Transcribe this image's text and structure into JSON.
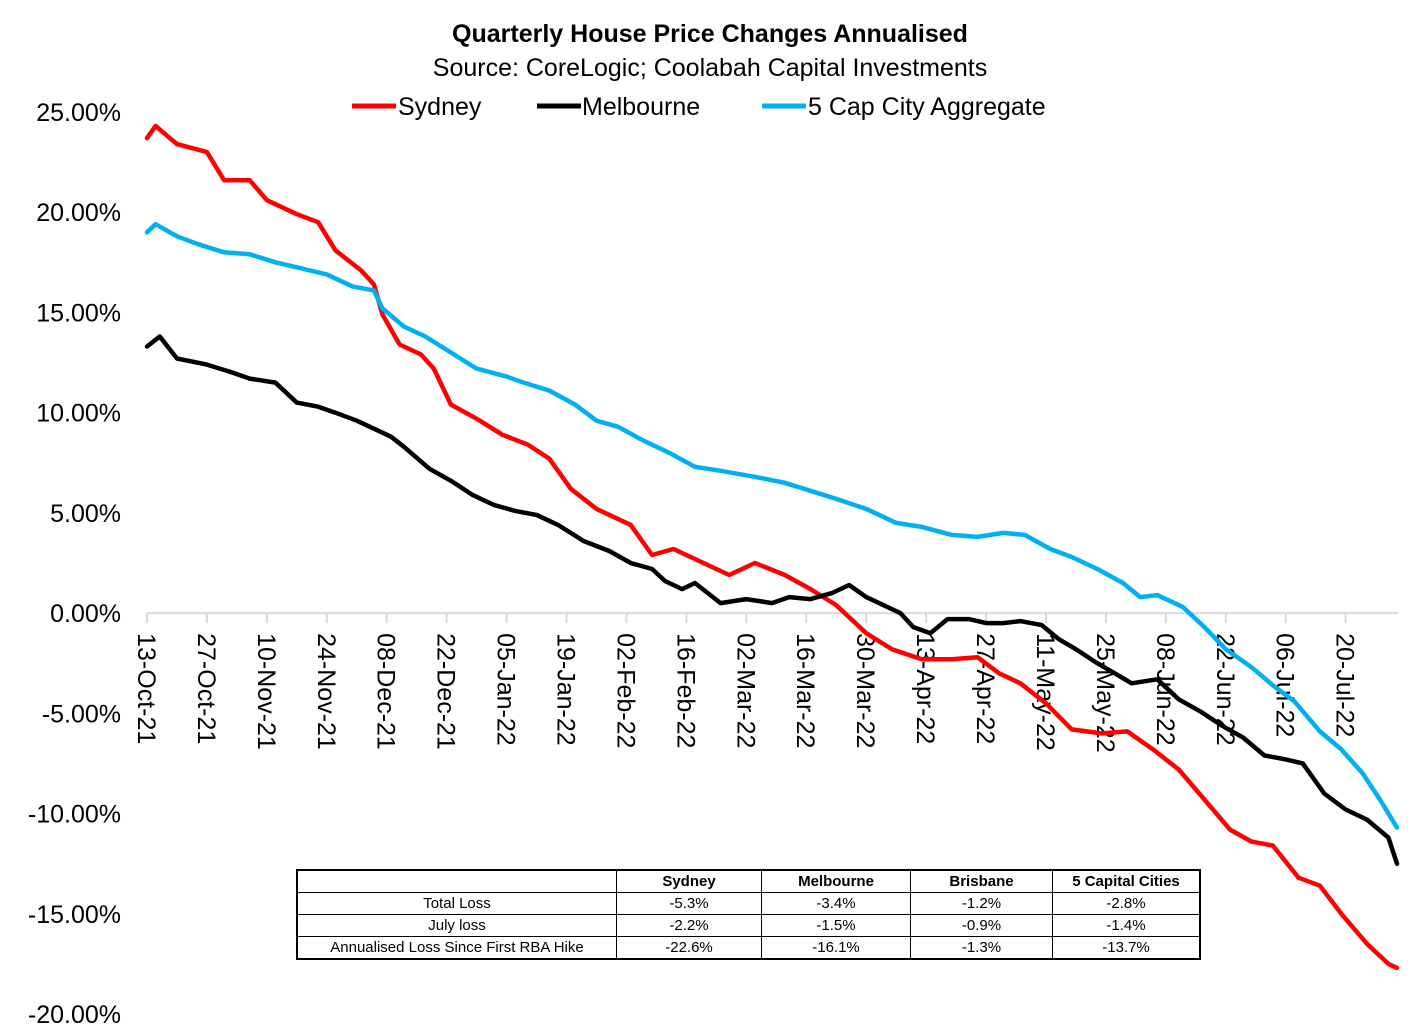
{
  "chart_data": {
    "type": "line",
    "title": "Quarterly House Price Changes Annualised",
    "subtitle": "Source: CoreLogic; Coolabah Capital Investments",
    "xlabel": "",
    "ylabel": "",
    "ylim": [
      -20,
      25
    ],
    "y_ticks": [
      25,
      20,
      15,
      10,
      5,
      0,
      -5,
      -10,
      -15,
      -20
    ],
    "y_tick_labels": [
      "25.00%",
      "20.00%",
      "15.00%",
      "10.00%",
      "5.00%",
      "0.00%",
      "-5.00%",
      "-10.00%",
      "-15.00%",
      "-20.00%"
    ],
    "x_start_date": "2021-10-13",
    "x_end_day": 292,
    "x_tick_days": [
      0,
      14,
      28,
      42,
      56,
      70,
      84,
      98,
      112,
      126,
      140,
      154,
      168,
      182,
      196,
      210,
      224,
      238,
      252,
      266,
      280
    ],
    "x_tick_labels": [
      "13-Oct-21",
      "27-Oct-21",
      "10-Nov-21",
      "24-Nov-21",
      "08-Dec-21",
      "22-Dec-21",
      "05-Jan-22",
      "19-Jan-22",
      "02-Feb-22",
      "16-Feb-22",
      "02-Mar-22",
      "16-Mar-22",
      "30-Mar-22",
      "13-Apr-22",
      "27-Apr-22",
      "11-May-22",
      "25-May-22",
      "08-Jun-22",
      "22-Jun-22",
      "06-Jul-22",
      "20-Jul-22"
    ],
    "legend_position": "top-center",
    "grid": false,
    "series": [
      {
        "name": "Sydney",
        "color": "#FF0000",
        "x_days": [
          0,
          2,
          7,
          14,
          18,
          24,
          28,
          35,
          40,
          44,
          50,
          53,
          55,
          59,
          64,
          67,
          71,
          77,
          83,
          89,
          94,
          99,
          105,
          113,
          118,
          123,
          128,
          136,
          142,
          149,
          155,
          161,
          168,
          174,
          181,
          188,
          194,
          199,
          204,
          210,
          216,
          223,
          229,
          235,
          241,
          247,
          253,
          258,
          263,
          269,
          274,
          279,
          285,
          290,
          292
        ],
        "values": [
          23.7,
          24.3,
          23.4,
          23.0,
          21.6,
          21.6,
          20.6,
          19.9,
          19.5,
          18.1,
          17.1,
          16.4,
          14.9,
          13.4,
          12.9,
          12.2,
          10.4,
          9.7,
          8.9,
          8.4,
          7.7,
          6.2,
          5.2,
          4.4,
          2.9,
          3.2,
          2.7,
          1.9,
          2.5,
          1.9,
          1.2,
          0.4,
          -1.0,
          -1.8,
          -2.3,
          -2.3,
          -2.2,
          -3.0,
          -3.5,
          -4.5,
          -5.8,
          -6.0,
          -5.9,
          -6.8,
          -7.8,
          -9.3,
          -10.8,
          -11.4,
          -11.6,
          -13.2,
          -13.6,
          -15.0,
          -16.5,
          -17.5,
          -17.7
        ]
      },
      {
        "name": "Melbourne",
        "color": "#000000",
        "x_days": [
          0,
          3,
          7,
          14,
          20,
          24,
          30,
          35,
          40,
          44,
          49,
          53,
          57,
          60,
          66,
          71,
          76,
          81,
          86,
          91,
          96,
          102,
          108,
          113,
          118,
          121,
          125,
          128,
          134,
          140,
          146,
          150,
          155,
          160,
          164,
          168,
          173,
          176,
          179,
          183,
          187,
          192,
          196,
          200,
          204,
          209,
          213,
          217,
          222,
          226,
          230,
          236,
          241,
          246,
          251,
          256,
          261,
          266,
          270,
          275,
          280,
          285,
          290,
          292
        ],
        "values": [
          13.3,
          13.8,
          12.7,
          12.4,
          12.0,
          11.7,
          11.5,
          10.5,
          10.3,
          10.0,
          9.6,
          9.2,
          8.8,
          8.3,
          7.2,
          6.6,
          5.9,
          5.4,
          5.1,
          4.9,
          4.4,
          3.6,
          3.1,
          2.5,
          2.2,
          1.6,
          1.2,
          1.5,
          0.5,
          0.7,
          0.5,
          0.8,
          0.7,
          1.0,
          1.4,
          0.8,
          0.3,
          0.0,
          -0.7,
          -1.0,
          -0.3,
          -0.3,
          -0.5,
          -0.5,
          -0.4,
          -0.6,
          -1.3,
          -1.8,
          -2.5,
          -3.0,
          -3.5,
          -3.3,
          -4.3,
          -4.9,
          -5.6,
          -6.2,
          -7.1,
          -7.3,
          -7.5,
          -9.0,
          -9.8,
          -10.3,
          -11.2,
          -12.5
        ]
      },
      {
        "name": "5 Cap City Aggregate",
        "color": "#00B0F0",
        "x_days": [
          0,
          2,
          7,
          12,
          18,
          24,
          30,
          36,
          42,
          48,
          53,
          55,
          60,
          65,
          71,
          77,
          84,
          88,
          94,
          100,
          105,
          110,
          116,
          122,
          128,
          134,
          142,
          149,
          155,
          161,
          168,
          175,
          181,
          188,
          194,
          200,
          205,
          211,
          216,
          222,
          228,
          232,
          236,
          242,
          247,
          252,
          258,
          263,
          268,
          274,
          279,
          284,
          288,
          292
        ],
        "values": [
          19.0,
          19.4,
          18.8,
          18.4,
          18.0,
          17.9,
          17.5,
          17.2,
          16.9,
          16.3,
          16.1,
          15.2,
          14.3,
          13.8,
          13.0,
          12.2,
          11.8,
          11.5,
          11.1,
          10.4,
          9.6,
          9.3,
          8.6,
          8.0,
          7.3,
          7.1,
          6.8,
          6.5,
          6.1,
          5.7,
          5.2,
          4.5,
          4.3,
          3.9,
          3.8,
          4.0,
          3.9,
          3.2,
          2.8,
          2.2,
          1.5,
          0.8,
          0.9,
          0.3,
          -0.7,
          -1.8,
          -2.7,
          -3.6,
          -4.4,
          -5.9,
          -6.8,
          -8.0,
          -9.3,
          -10.7
        ]
      }
    ]
  },
  "table": {
    "headers": [
      "",
      "Sydney",
      "Melbourne",
      "Brisbane",
      "5 Capital Cities"
    ],
    "rows": [
      {
        "label": "Total Loss",
        "values": [
          "-5.3%",
          "-3.4%",
          "-1.2%",
          "-2.8%"
        ]
      },
      {
        "label": "July loss",
        "values": [
          "-2.2%",
          "-1.5%",
          "-0.9%",
          "-1.4%"
        ]
      },
      {
        "label": "Annualised Loss Since First RBA Hike",
        "values": [
          "-22.6%",
          "-16.1%",
          "-1.3%",
          "-13.7%"
        ]
      }
    ]
  }
}
